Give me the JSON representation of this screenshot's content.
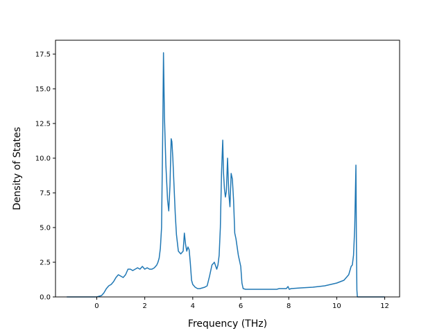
{
  "chart_data": {
    "type": "line",
    "title": "",
    "xlabel": "Frequency (THz)",
    "ylabel": "Density of States",
    "xlim": [
      -1.72,
      12.62
    ],
    "ylim": [
      0,
      18.5
    ],
    "x_ticks": [
      0,
      2,
      4,
      6,
      8,
      10,
      12
    ],
    "x_tick_labels": [
      "0",
      "2",
      "4",
      "6",
      "8",
      "10",
      "12"
    ],
    "y_ticks": [
      0,
      2.5,
      5,
      7.5,
      10,
      12.5,
      15,
      17.5
    ],
    "y_tick_labels": [
      "0.0",
      "2.5",
      "5.0",
      "7.5",
      "10.0",
      "12.5",
      "15.0",
      "17.5"
    ],
    "grid": false,
    "legend": "none",
    "series": [
      {
        "color": "#1f77b4",
        "x": [
          -1.25,
          0.0,
          0.2,
          0.3,
          0.4,
          0.5,
          0.6,
          0.7,
          0.8,
          0.9,
          1.0,
          1.1,
          1.2,
          1.3,
          1.4,
          1.5,
          1.6,
          1.7,
          1.8,
          1.9,
          2.0,
          2.1,
          2.2,
          2.3,
          2.4,
          2.5,
          2.55,
          2.6,
          2.65,
          2.7,
          2.75,
          2.78,
          2.82,
          2.88,
          2.95,
          3.0,
          3.05,
          3.1,
          3.13,
          3.17,
          3.22,
          3.27,
          3.32,
          3.4,
          3.5,
          3.6,
          3.65,
          3.7,
          3.75,
          3.8,
          3.85,
          3.9,
          3.95,
          4.0,
          4.1,
          4.2,
          4.3,
          4.5,
          4.6,
          4.7,
          4.8,
          4.9,
          5.0,
          5.05,
          5.1,
          5.15,
          5.2,
          5.25,
          5.28,
          5.32,
          5.36,
          5.4,
          5.45,
          5.5,
          5.55,
          5.6,
          5.65,
          5.7,
          5.75,
          5.8,
          5.9,
          6.0,
          6.05,
          6.1,
          6.2,
          6.5,
          7.0,
          7.5,
          7.6,
          7.9,
          7.97,
          8.02,
          8.1,
          8.5,
          9.0,
          9.5,
          10.0,
          10.3,
          10.4,
          10.5,
          10.55,
          10.6,
          10.65,
          10.7,
          10.75,
          10.8,
          10.82,
          10.84,
          10.86,
          12.0
        ],
        "y": [
          0.0,
          0.0,
          0.1,
          0.3,
          0.6,
          0.8,
          0.9,
          1.1,
          1.4,
          1.6,
          1.5,
          1.4,
          1.6,
          2.0,
          2.0,
          1.9,
          2.0,
          2.1,
          2.0,
          2.2,
          2.0,
          2.1,
          2.0,
          2.0,
          2.1,
          2.3,
          2.5,
          2.8,
          3.5,
          5.0,
          12.0,
          17.6,
          13.0,
          9.5,
          7.0,
          6.2,
          8.0,
          11.4,
          11.2,
          10.0,
          8.0,
          6.0,
          4.5,
          3.3,
          3.1,
          3.3,
          4.6,
          3.8,
          3.3,
          3.6,
          3.4,
          2.4,
          1.2,
          0.9,
          0.7,
          0.6,
          0.6,
          0.7,
          0.8,
          1.5,
          2.3,
          2.5,
          2.0,
          2.3,
          3.0,
          5.0,
          9.0,
          11.3,
          9.0,
          7.8,
          7.2,
          7.6,
          10.0,
          7.5,
          6.5,
          8.9,
          8.5,
          7.0,
          4.6,
          4.2,
          3.0,
          2.2,
          1.0,
          0.6,
          0.55,
          0.55,
          0.55,
          0.55,
          0.6,
          0.6,
          0.75,
          0.55,
          0.6,
          0.65,
          0.7,
          0.8,
          1.0,
          1.2,
          1.4,
          1.6,
          1.9,
          2.2,
          2.3,
          3.0,
          5.0,
          9.5,
          4.0,
          0.5,
          0.0,
          0.0
        ]
      }
    ]
  }
}
